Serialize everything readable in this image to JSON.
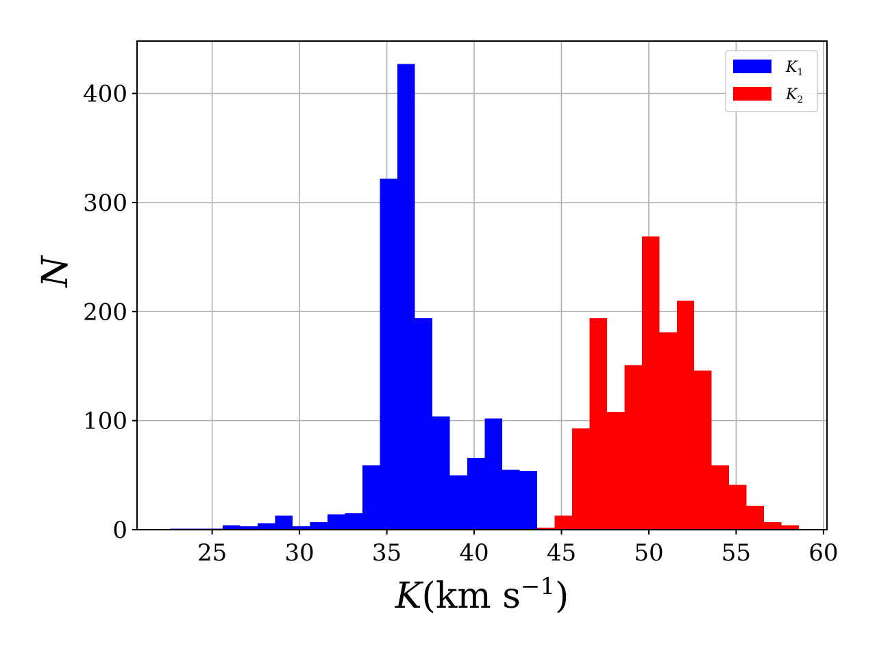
{
  "chart_data": {
    "type": "bar",
    "title": "",
    "xlabel": "K (km s^-1)",
    "xlabel_parts": {
      "symbol": "K",
      "open": "(",
      "unit": "km s",
      "exp": "−1",
      "close": ")"
    },
    "ylabel": "N",
    "xlim": [
      20.7,
      60.2
    ],
    "ylim": [
      0,
      448
    ],
    "xticks": [
      25,
      30,
      35,
      40,
      45,
      50,
      55,
      60
    ],
    "yticks": [
      0,
      100,
      200,
      300,
      400
    ],
    "grid": true,
    "legend_position": "top-right",
    "series": [
      {
        "name": "K1",
        "name_parts": {
          "base": "K",
          "sub": "1"
        },
        "color": "#0000ff",
        "bin_width": 1.0,
        "bins": [
          {
            "x0": 22.6,
            "x1": 23.6,
            "count": 1
          },
          {
            "x0": 23.6,
            "x1": 24.6,
            "count": 1
          },
          {
            "x0": 24.6,
            "x1": 25.6,
            "count": 1
          },
          {
            "x0": 25.6,
            "x1": 26.6,
            "count": 4
          },
          {
            "x0": 26.6,
            "x1": 27.6,
            "count": 3
          },
          {
            "x0": 27.6,
            "x1": 28.6,
            "count": 6
          },
          {
            "x0": 28.6,
            "x1": 29.6,
            "count": 13
          },
          {
            "x0": 29.6,
            "x1": 30.6,
            "count": 3
          },
          {
            "x0": 30.6,
            "x1": 31.6,
            "count": 7
          },
          {
            "x0": 31.6,
            "x1": 32.6,
            "count": 14
          },
          {
            "x0": 32.6,
            "x1": 33.6,
            "count": 15
          },
          {
            "x0": 33.6,
            "x1": 34.6,
            "count": 59
          },
          {
            "x0": 34.6,
            "x1": 35.6,
            "count": 322
          },
          {
            "x0": 35.6,
            "x1": 36.6,
            "count": 427
          },
          {
            "x0": 36.6,
            "x1": 37.6,
            "count": 194
          },
          {
            "x0": 37.6,
            "x1": 38.6,
            "count": 104
          },
          {
            "x0": 38.6,
            "x1": 39.6,
            "count": 50
          },
          {
            "x0": 39.6,
            "x1": 40.6,
            "count": 66
          },
          {
            "x0": 40.6,
            "x1": 41.6,
            "count": 102
          },
          {
            "x0": 41.6,
            "x1": 42.6,
            "count": 55
          },
          {
            "x0": 42.6,
            "x1": 43.6,
            "count": 54
          }
        ]
      },
      {
        "name": "K2",
        "name_parts": {
          "base": "K",
          "sub": "2"
        },
        "color": "#ff0000",
        "bin_width": 1.0,
        "bins": [
          {
            "x0": 43.6,
            "x1": 44.6,
            "count": 2
          },
          {
            "x0": 44.6,
            "x1": 45.6,
            "count": 13
          },
          {
            "x0": 45.6,
            "x1": 46.6,
            "count": 93
          },
          {
            "x0": 46.6,
            "x1": 47.6,
            "count": 194
          },
          {
            "x0": 47.6,
            "x1": 48.6,
            "count": 108
          },
          {
            "x0": 48.6,
            "x1": 49.6,
            "count": 151
          },
          {
            "x0": 49.6,
            "x1": 50.6,
            "count": 269
          },
          {
            "x0": 50.6,
            "x1": 51.6,
            "count": 181
          },
          {
            "x0": 51.6,
            "x1": 52.6,
            "count": 210
          },
          {
            "x0": 52.6,
            "x1": 53.6,
            "count": 146
          },
          {
            "x0": 53.6,
            "x1": 54.6,
            "count": 59
          },
          {
            "x0": 54.6,
            "x1": 55.6,
            "count": 41
          },
          {
            "x0": 55.6,
            "x1": 56.6,
            "count": 22
          },
          {
            "x0": 56.6,
            "x1": 57.6,
            "count": 7
          },
          {
            "x0": 57.6,
            "x1": 58.6,
            "count": 4
          }
        ]
      }
    ]
  }
}
